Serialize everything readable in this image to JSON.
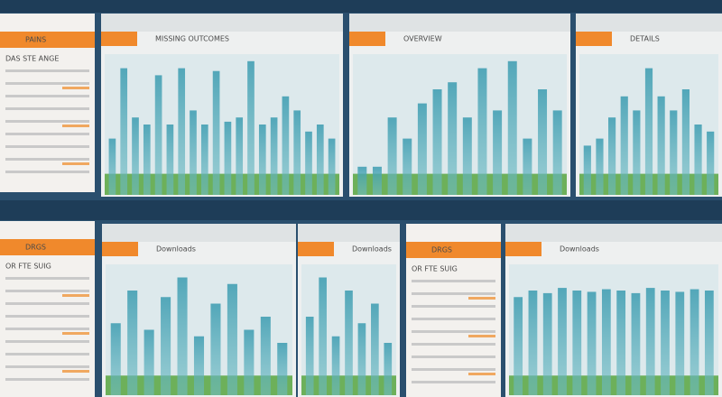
{
  "sidebars": [
    {
      "title": "PAINS",
      "subtitle": "DAS STE ANGE"
    },
    {
      "title": "DRGS",
      "subtitle": "OR FTE SUIG"
    },
    {
      "title": "DRGS",
      "subtitle": "OR FTE SUIG"
    }
  ],
  "panels": [
    {
      "title": "MISSING OUTCOMES",
      "ylim": [
        0,
        100
      ],
      "values": [
        40,
        90,
        55,
        50,
        85,
        50,
        90,
        60,
        50,
        88,
        52,
        55,
        95,
        50,
        55,
        70,
        60,
        45,
        50,
        40
      ]
    },
    {
      "title": "OVERVIEW",
      "ylim": [
        0,
        100
      ],
      "values": [
        20,
        20,
        55,
        40,
        65,
        75,
        80,
        55,
        90,
        60,
        95,
        40,
        75,
        60
      ]
    },
    {
      "title": "DETAILS",
      "ylim": [
        0,
        100
      ],
      "values": [
        35,
        40,
        55,
        70,
        60,
        90,
        70,
        60,
        75,
        50,
        45
      ]
    },
    {
      "title": "Downloads",
      "ylim": [
        0,
        100
      ],
      "values": [
        55,
        80,
        50,
        75,
        90,
        45,
        70,
        85,
        50,
        60,
        40
      ]
    },
    {
      "title": "Downloads",
      "ylim": [
        0,
        100
      ],
      "values": [
        60,
        90,
        45,
        80,
        55,
        70,
        40
      ]
    },
    {
      "title": "Downloads",
      "ylim": [
        0,
        100
      ],
      "values": [
        75,
        80,
        78,
        82,
        80,
        79,
        81,
        80,
        78,
        82,
        80,
        79,
        81,
        80
      ]
    }
  ]
}
